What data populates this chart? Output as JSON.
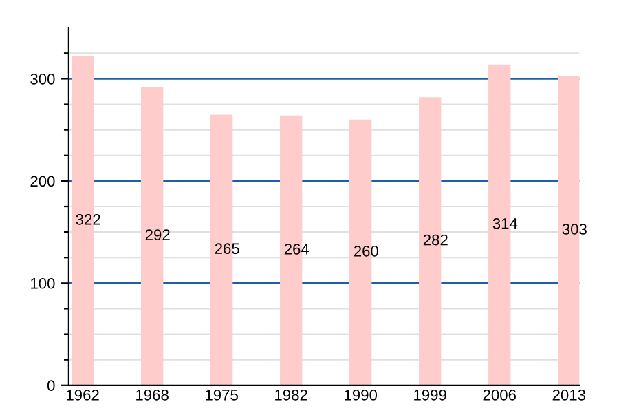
{
  "chart_data": {
    "type": "bar",
    "categories": [
      "1962",
      "1968",
      "1975",
      "1982",
      "1990",
      "1999",
      "2006",
      "2013"
    ],
    "values": [
      322,
      292,
      265,
      264,
      260,
      282,
      314,
      303
    ],
    "color": "#ffcccc",
    "data_labels": true,
    "ylim": [
      0,
      350
    ],
    "yticks": [
      0,
      {
        "value": 25,
        "label": null
      },
      {
        "value": 50,
        "label": null
      },
      {
        "value": 75,
        "label": null
      },
      100,
      {
        "value": 125,
        "label": null
      },
      {
        "value": 150,
        "label": null
      },
      {
        "value": 175,
        "label": null
      },
      200,
      {
        "value": 225,
        "label": null
      },
      {
        "value": 250,
        "label": null
      },
      {
        "value": 275,
        "label": null
      },
      300,
      {
        "value": 325,
        "label": null
      }
    ],
    "grid": "y"
  }
}
